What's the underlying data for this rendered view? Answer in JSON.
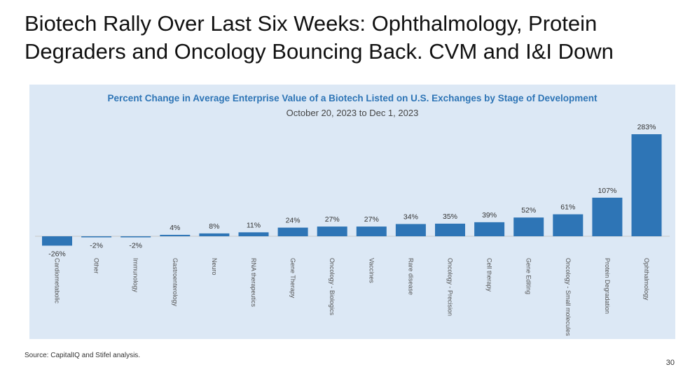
{
  "slide": {
    "title": "Biotech Rally Over Last Six Weeks: Ophthalmology, Protein Degraders and Oncology Bouncing Back. CVM and I&I Down",
    "source": "Source: CapitalIQ and Stifel analysis.",
    "page_number": "30"
  },
  "colors": {
    "bar": "#2e75b6",
    "panel": "#dce8f5",
    "title": "#2e75b6"
  },
  "chart_data": {
    "type": "bar",
    "title": "Percent Change in Average Enterprise Value of a Biotech Listed on U.S. Exchanges by Stage of Development",
    "subtitle": "October 20, 2023 to Dec 1, 2023",
    "xlabel": "",
    "ylabel": "",
    "ylim": [
      -30,
      300
    ],
    "grid": false,
    "categories": [
      "Cardiometabolic",
      "Other",
      "Immunology",
      "Gastroenterology",
      "Neuro",
      "RNA therapeutics",
      "Gene Therapy",
      "Oncology - Biologics",
      "Vaccines",
      "Rare disease",
      "Oncology - Precision",
      "Cell therapy",
      "Gene Editing",
      "Oncology - Small molecules",
      "Protein Degradation",
      "Ophthalmology"
    ],
    "values": [
      -26,
      -2,
      -2,
      4,
      8,
      11,
      24,
      27,
      27,
      34,
      35,
      39,
      52,
      61,
      107,
      283
    ],
    "labels": [
      "-26%",
      "-2%",
      "-2%",
      "4%",
      "8%",
      "11%",
      "24%",
      "27%",
      "27%",
      "34%",
      "35%",
      "39%",
      "52%",
      "61%",
      "107%",
      "283%"
    ]
  }
}
